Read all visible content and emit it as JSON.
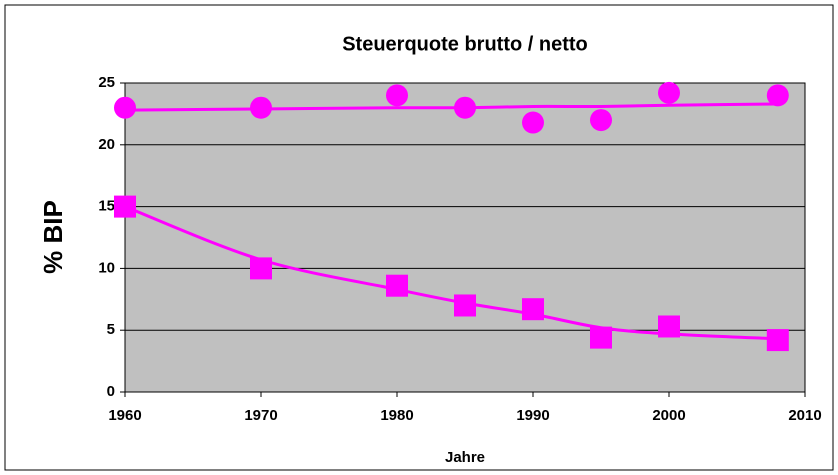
{
  "chart_data": {
    "type": "scatter",
    "title": "Steuerquote brutto / netto",
    "x_label": "Jahre",
    "y_label": "% BIP",
    "x": [
      1960,
      1970,
      1980,
      1985,
      1990,
      1995,
      2000,
      2008
    ],
    "series": [
      {
        "color": "#ff00ff",
        "marker": "circle",
        "values": [
          23,
          23,
          24,
          23,
          21.8,
          22,
          24.2,
          24
        ]
      },
      {
        "color": "#ff00ff",
        "marker": "square",
        "values": [
          15,
          10,
          8.6,
          7,
          6.7,
          4.4,
          5.3,
          4.2
        ]
      },
      {
        "color": "#ff00ff",
        "marker": "none",
        "values": [
          22.8,
          22.9,
          23.0,
          23.0,
          23.1,
          23.1,
          23.2,
          23.3
        ]
      },
      {
        "color": "#ff00ff",
        "marker": "none",
        "values": [
          15,
          10.7,
          8.3,
          7.2,
          6.3,
          5.2,
          4.7,
          4.3
        ]
      }
    ],
    "xlim": [
      1960,
      2010
    ],
    "xticks": [
      1960,
      1970,
      1980,
      1990,
      2000,
      2010
    ],
    "ylim": [
      0,
      25
    ],
    "yticks": [
      0,
      5,
      10,
      15,
      20,
      25
    ],
    "grid": true,
    "plot_background": "#c0c0c0"
  }
}
